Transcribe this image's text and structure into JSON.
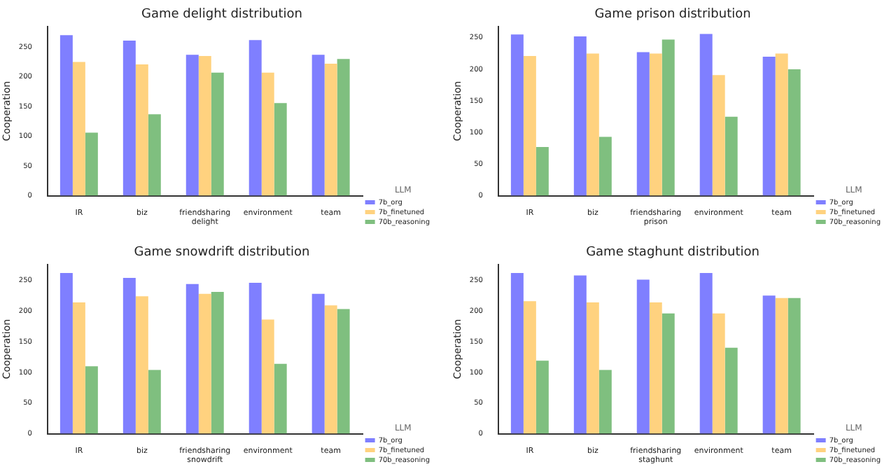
{
  "chart_data": [
    {
      "type": "bar",
      "title": "Game delight distribution",
      "ylabel": "Cooperation",
      "categories": [
        "IR",
        "biz",
        "friendsharing\ndelight",
        "environment",
        "team"
      ],
      "legend_title": "LLM",
      "legend": "right",
      "grid": false,
      "ylim": [
        0,
        285
      ],
      "yticks": [
        0,
        50,
        100,
        150,
        200,
        250
      ],
      "series": [
        {
          "name": "7b_org",
          "color": "#7f7fff",
          "values": [
            270,
            261,
            237,
            262,
            237
          ]
        },
        {
          "name": "7b_finetuned",
          "color": "#ffd27f",
          "values": [
            225,
            221,
            235,
            207,
            222
          ]
        },
        {
          "name": "70b_reasoning",
          "color": "#7fbf7f",
          "values": [
            106,
            137,
            207,
            156,
            230
          ]
        }
      ]
    },
    {
      "type": "bar",
      "title": "Game prison distribution",
      "ylabel": "Cooperation",
      "categories": [
        "IR",
        "biz",
        "friendsharing\nprison",
        "environment",
        "team"
      ],
      "legend_title": "LLM",
      "legend": "right",
      "grid": false,
      "ylim": [
        0,
        268
      ],
      "yticks": [
        0,
        50,
        100,
        150,
        200,
        250
      ],
      "series": [
        {
          "name": "7b_org",
          "color": "#7f7fff",
          "values": [
            255,
            252,
            227,
            256,
            220
          ]
        },
        {
          "name": "7b_finetuned",
          "color": "#ffd27f",
          "values": [
            221,
            225,
            225,
            191,
            225
          ]
        },
        {
          "name": "70b_reasoning",
          "color": "#7fbf7f",
          "values": [
            77,
            93,
            247,
            125,
            200
          ]
        }
      ]
    },
    {
      "type": "bar",
      "title": "Game snowdrift distribution",
      "ylabel": "Cooperation",
      "categories": [
        "IR",
        "biz",
        "friendsharing\nsnowdrift",
        "environment",
        "team"
      ],
      "legend_title": "LLM",
      "legend": "right",
      "grid": false,
      "ylim": [
        0,
        276
      ],
      "yticks": [
        0,
        50,
        100,
        150,
        200,
        250
      ],
      "series": [
        {
          "name": "7b_org",
          "color": "#7f7fff",
          "values": [
            262,
            254,
            244,
            246,
            228
          ]
        },
        {
          "name": "7b_finetuned",
          "color": "#ffd27f",
          "values": [
            214,
            224,
            228,
            186,
            209
          ]
        },
        {
          "name": "70b_reasoning",
          "color": "#7fbf7f",
          "values": [
            110,
            104,
            231,
            114,
            203
          ]
        }
      ]
    },
    {
      "type": "bar",
      "title": "Game staghunt distribution",
      "ylabel": "Cooperation",
      "categories": [
        "IR",
        "biz",
        "friendsharing\nstaghunt",
        "environment",
        "team"
      ],
      "legend_title": "LLM",
      "legend": "right",
      "grid": false,
      "ylim": [
        0,
        276
      ],
      "yticks": [
        0,
        50,
        100,
        150,
        200,
        250
      ],
      "series": [
        {
          "name": "7b_org",
          "color": "#7f7fff",
          "values": [
            262,
            258,
            251,
            262,
            225
          ]
        },
        {
          "name": "7b_finetuned",
          "color": "#ffd27f",
          "values": [
            216,
            214,
            214,
            196,
            221
          ]
        },
        {
          "name": "70b_reasoning",
          "color": "#7fbf7f",
          "values": [
            119,
            104,
            196,
            140,
            221
          ]
        }
      ]
    }
  ]
}
